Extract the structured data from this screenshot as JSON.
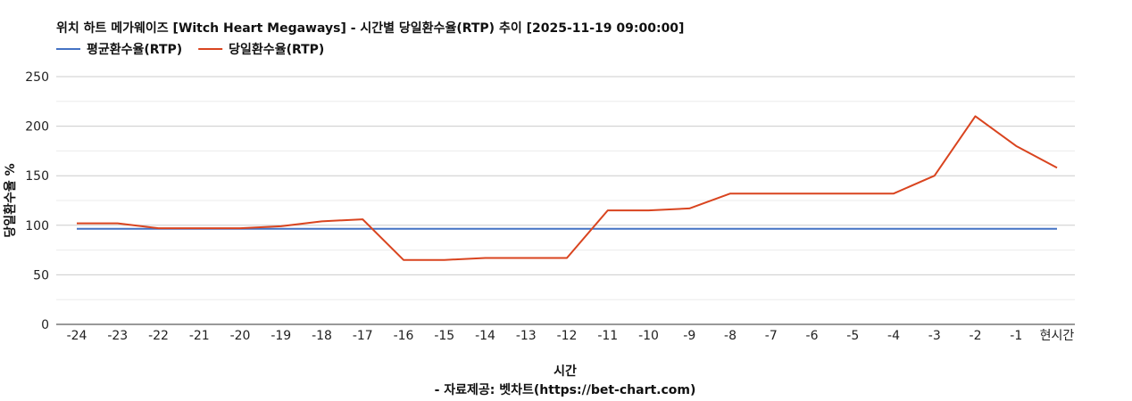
{
  "chart_data": {
    "type": "line",
    "title": "위치 하트 메가웨이즈 [Witch Heart Megaways] - 시간별 당일환수율(RTP) 추이 [2025-11-19 09:00:00]",
    "xlabel": "시간",
    "ylabel": "당일환수율 %",
    "source": "- 자료제공: 벳차트(https://bet-chart.com)",
    "ylim": [
      0,
      250
    ],
    "yticks": [
      "0",
      "50",
      "100",
      "150",
      "200",
      "250"
    ],
    "grid": true,
    "legend_position": "top-left",
    "categories": [
      "-24",
      "-23",
      "-22",
      "-21",
      "-20",
      "-19",
      "-18",
      "-17",
      "-16",
      "-15",
      "-14",
      "-13",
      "-12",
      "-11",
      "-10",
      "-9",
      "-8",
      "-7",
      "-6",
      "-5",
      "-4",
      "-3",
      "-2",
      "-1",
      "현시간"
    ],
    "series": [
      {
        "name": "평균환수율(RTP)",
        "color": "#4472c4",
        "values": [
          96.5,
          96.5,
          96.5,
          96.5,
          96.5,
          96.5,
          96.5,
          96.5,
          96.5,
          96.5,
          96.5,
          96.5,
          96.5,
          96.5,
          96.5,
          96.5,
          96.5,
          96.5,
          96.5,
          96.5,
          96.5,
          96.5,
          96.5,
          96.5,
          96.5
        ]
      },
      {
        "name": "당일환수율(RTP)",
        "color": "#d9441f",
        "values": [
          102,
          102,
          97,
          97,
          97,
          99,
          104,
          106,
          65,
          65,
          67,
          67,
          67,
          115,
          115,
          117,
          132,
          132,
          132,
          132,
          132,
          150,
          210,
          180,
          158
        ]
      }
    ]
  }
}
